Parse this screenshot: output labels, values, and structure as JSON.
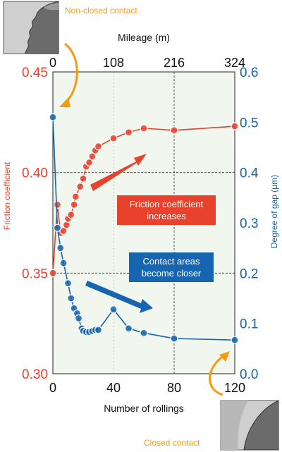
{
  "chart_data": {
    "type": "line",
    "xlabel": "Number of rollings",
    "x_ticks": [
      "0",
      "40",
      "80",
      "120"
    ],
    "xlim": [
      0,
      120
    ],
    "top_axis": {
      "label": "Mileage (m)",
      "ticks": [
        "0",
        "108",
        "216",
        "324"
      ]
    },
    "left_axis": {
      "label": "Friction coefficient",
      "ticks": [
        "0.30",
        "0.35",
        "0.40",
        "0.45"
      ],
      "ylim": [
        0.3,
        0.45
      ],
      "color": "#e8412c"
    },
    "right_axis": {
      "label": "Degree of gap (μm)",
      "ticks": [
        "0.0",
        "0.1",
        "0.2",
        "0.3",
        "0.4",
        "0.5",
        "0.6"
      ],
      "ylim": [
        0.0,
        0.6
      ],
      "color": "#1565b0"
    },
    "grid": "dashed",
    "series": [
      {
        "name": "",
        "axis": "left",
        "color": "#e8412c",
        "points": [
          [
            0,
            0.35
          ],
          [
            3,
            0.384
          ],
          [
            5,
            0.37
          ],
          [
            7,
            0.371
          ],
          [
            9,
            0.374
          ],
          [
            10,
            0.377
          ],
          [
            12,
            0.379
          ],
          [
            14,
            0.384
          ],
          [
            15,
            0.388
          ],
          [
            18,
            0.393
          ],
          [
            20,
            0.397
          ],
          [
            22,
            0.403
          ],
          [
            24,
            0.405
          ],
          [
            26,
            0.408
          ],
          [
            28,
            0.411
          ],
          [
            30,
            0.413
          ],
          [
            40,
            0.417
          ],
          [
            50,
            0.42
          ],
          [
            60,
            0.422
          ],
          [
            80,
            0.421
          ],
          [
            120,
            0.423
          ]
        ]
      },
      {
        "name": "",
        "axis": "right",
        "color": "#1565b0",
        "points": [
          [
            0,
            0.51
          ],
          [
            3,
            0.29
          ],
          [
            5,
            0.25
          ],
          [
            7,
            0.22
          ],
          [
            10,
            0.18
          ],
          [
            12,
            0.15
          ],
          [
            14,
            0.13
          ],
          [
            16,
            0.12
          ],
          [
            17,
            0.11
          ],
          [
            19,
            0.09
          ],
          [
            20,
            0.085
          ],
          [
            22,
            0.083
          ],
          [
            24,
            0.083
          ],
          [
            26,
            0.085
          ],
          [
            28,
            0.087
          ],
          [
            30,
            0.087
          ],
          [
            40,
            0.128
          ],
          [
            50,
            0.09
          ],
          [
            60,
            0.081
          ],
          [
            80,
            0.07
          ],
          [
            120,
            0.067
          ]
        ]
      }
    ],
    "annotations": [
      {
        "text": [
          "Friction coefficient",
          "increases"
        ],
        "bg": "#e8412c"
      },
      {
        "text": [
          "Contact areas",
          "become closer"
        ],
        "bg": "#1565b0"
      }
    ],
    "callouts": {
      "top": "Non-closed contact",
      "bottom": "Closed contact",
      "color": "#f39c12"
    }
  }
}
